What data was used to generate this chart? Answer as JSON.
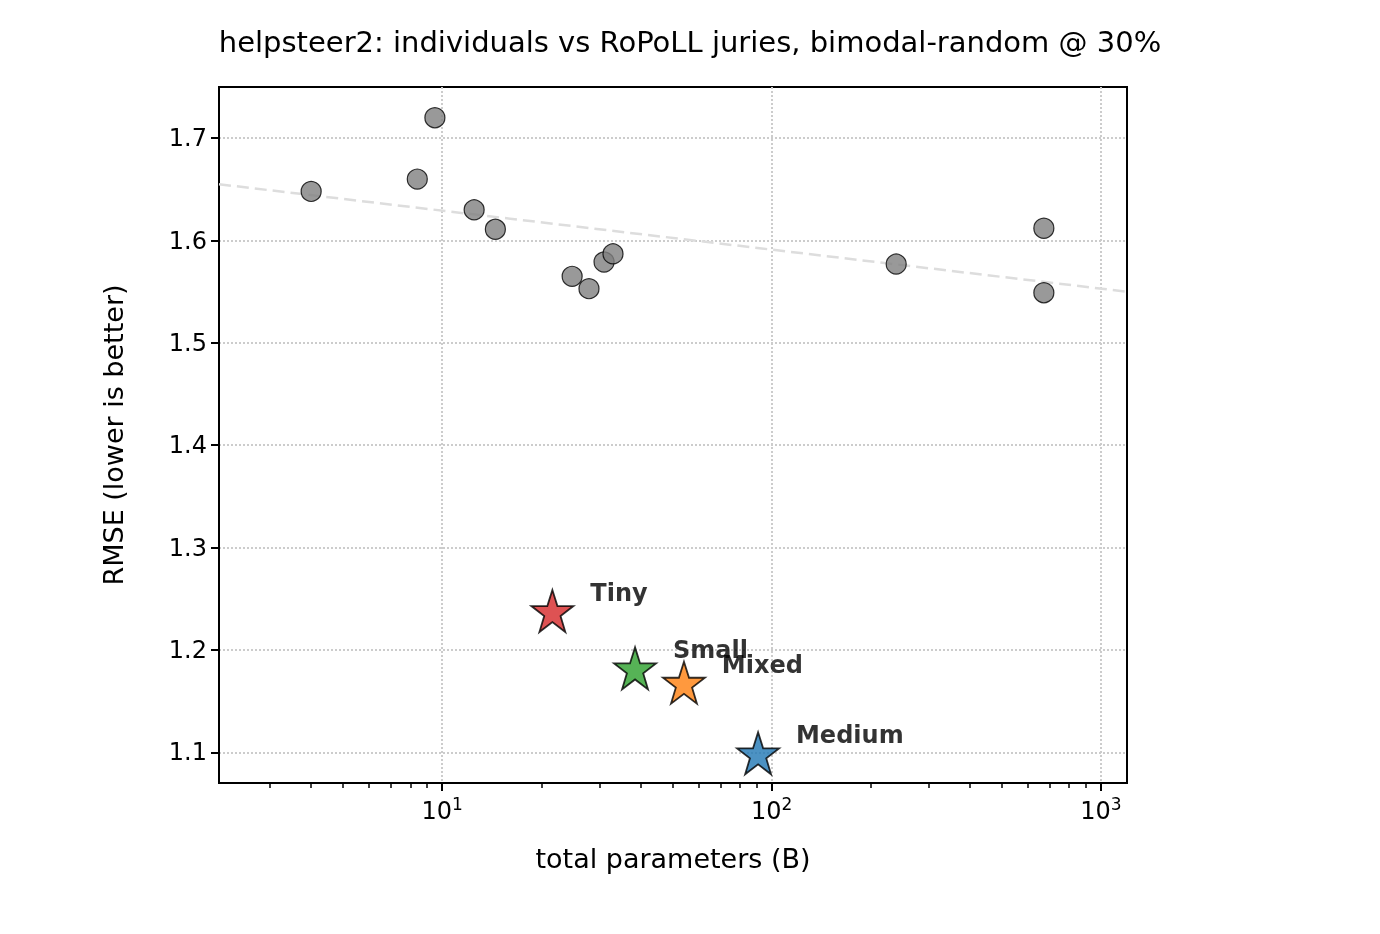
{
  "chart_data": {
    "type": "scatter",
    "title": "helpsteer2: individuals vs RoPoLL juries, bimodal-random @ 30%",
    "xlabel": "total parameters (B)",
    "ylabel": "RMSE (lower is better)",
    "log": "x",
    "xlim": [
      2.1,
      1200
    ],
    "ylim": [
      1.07,
      1.75
    ],
    "xticks": [
      {
        "value": 10,
        "label": "10$^{1}$"
      },
      {
        "value": 100,
        "label": "10$^{2}$"
      },
      {
        "value": 1000,
        "label": "10$^{3}$"
      }
    ],
    "yticks": [
      1.1,
      1.2,
      1.3,
      1.4,
      1.5,
      1.6,
      1.7
    ],
    "grid": true,
    "legend": false,
    "marker": "circle",
    "series": [
      {
        "type": "line",
        "color": "#dddddd",
        "line_style": "dashed",
        "marker": "none",
        "x": [
          2.1,
          1200
        ],
        "values": [
          1.655,
          1.55
        ]
      },
      {
        "color": "#808080",
        "x": [
          4,
          8.4,
          9.5,
          12.5,
          14.5,
          24.8,
          27.9,
          31,
          33,
          239,
          671,
          671
        ],
        "values": [
          1.648,
          1.66,
          1.72,
          1.63,
          1.611,
          1.565,
          1.553,
          1.579,
          1.587,
          1.577,
          1.612,
          1.549
        ]
      },
      {
        "name": "Tiny",
        "color": "#d62728",
        "marker": "star",
        "x": [
          21.6
        ],
        "values": [
          1.238
        ]
      },
      {
        "name": "Small",
        "color": "#2ca02c",
        "marker": "star",
        "x": [
          38.5
        ],
        "values": [
          1.182
        ]
      },
      {
        "name": "Mixed",
        "color": "#ff7f0e",
        "marker": "star",
        "x": [
          54.2
        ],
        "values": [
          1.168
        ]
      },
      {
        "name": "Medium",
        "color": "#1f77b4",
        "marker": "star",
        "x": [
          91
        ],
        "values": [
          1.099
        ]
      }
    ]
  }
}
